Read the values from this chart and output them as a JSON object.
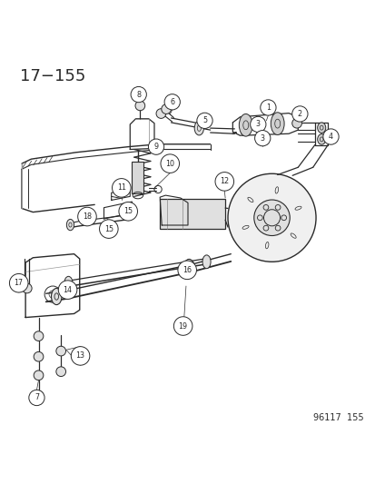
{
  "title": "17−155",
  "footer": "96117  155",
  "bg_color": "#ffffff",
  "line_color": "#2a2a2a",
  "title_fontsize": 13,
  "footer_fontsize": 7
}
